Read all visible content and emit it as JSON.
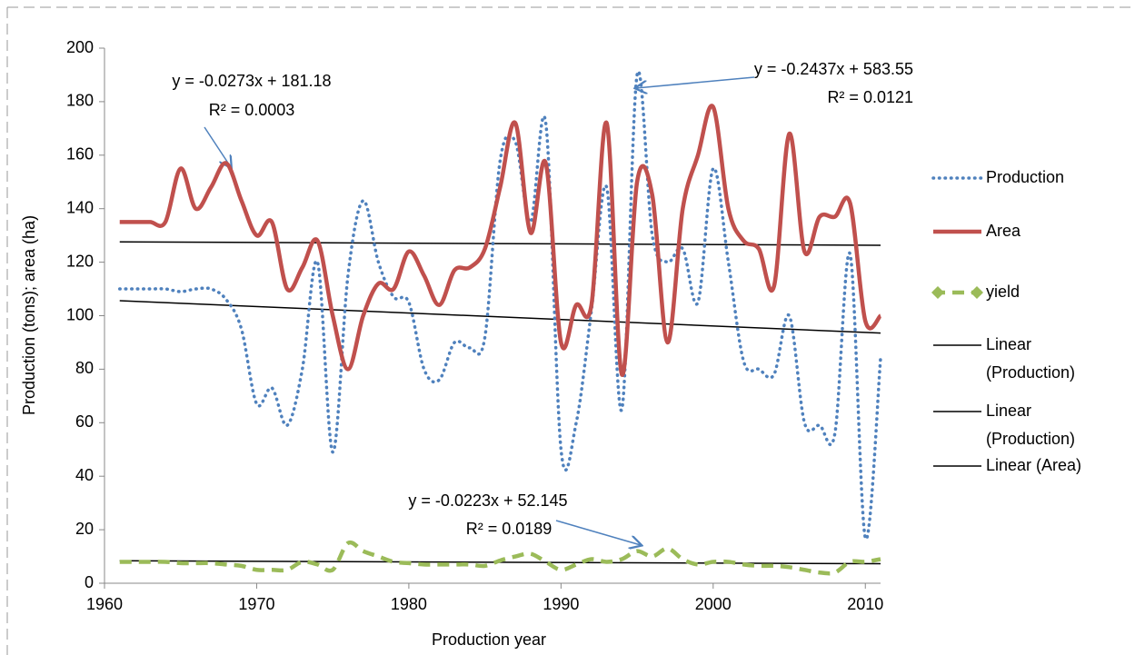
{
  "chart_data": {
    "type": "line",
    "x_label": "Production year",
    "y_label": "Production (tons); area (ha)",
    "xlim": [
      1960,
      2011
    ],
    "xticks": [
      1960,
      1970,
      1980,
      1990,
      2000,
      2010
    ],
    "ylim": [
      0,
      200
    ],
    "yticks": [
      0,
      20,
      40,
      60,
      80,
      100,
      120,
      140,
      160,
      180,
      200
    ],
    "x": [
      1961,
      1962,
      1963,
      1964,
      1965,
      1966,
      1967,
      1968,
      1969,
      1970,
      1971,
      1972,
      1973,
      1974,
      1975,
      1976,
      1977,
      1978,
      1979,
      1980,
      1981,
      1982,
      1983,
      1984,
      1985,
      1986,
      1987,
      1988,
      1989,
      1990,
      1991,
      1992,
      1993,
      1994,
      1995,
      1996,
      1997,
      1998,
      1999,
      2000,
      2001,
      2002,
      2003,
      2004,
      2005,
      2006,
      2007,
      2008,
      2009,
      2010,
      2011
    ],
    "series": [
      {
        "name": "Production",
        "color": "#4f81bd",
        "style": "dotted",
        "values": [
          110,
          110,
          110,
          110,
          109,
          110,
          110,
          106,
          95,
          67,
          73,
          59,
          80,
          120,
          49,
          115,
          143,
          120,
          107,
          105,
          80,
          76,
          90,
          88,
          92,
          158,
          165,
          135,
          172,
          50,
          60,
          102,
          148,
          65,
          190,
          130,
          120,
          125,
          105,
          155,
          120,
          83,
          80,
          78,
          100,
          60,
          59,
          56,
          123,
          17,
          84
        ]
      },
      {
        "name": "Area",
        "color": "#c0504d",
        "style": "solid",
        "values": [
          135,
          135,
          135,
          135,
          155,
          140,
          148,
          157,
          143,
          130,
          135,
          110,
          118,
          128,
          100,
          80,
          100,
          112,
          110,
          124,
          115,
          104,
          117,
          118,
          125,
          148,
          172,
          131,
          157,
          90,
          104,
          104,
          172,
          78,
          150,
          145,
          90,
          140,
          160,
          178,
          140,
          128,
          125,
          111,
          168,
          124,
          137,
          137,
          142,
          98,
          100
        ]
      },
      {
        "name": "yield",
        "color": "#9bbb59",
        "style": "dashed",
        "values": [
          8,
          8,
          8,
          8,
          7.5,
          7.5,
          7.5,
          7,
          6.5,
          5,
          5,
          5,
          8,
          7,
          5,
          15,
          12,
          10,
          8,
          7.5,
          7,
          7,
          7,
          7,
          6.5,
          8.5,
          10,
          11,
          8,
          5,
          7,
          9,
          8,
          9,
          12,
          10,
          13,
          9,
          7,
          8,
          8,
          7,
          6.5,
          6.5,
          6,
          5,
          4,
          4,
          8,
          8,
          9
        ]
      }
    ],
    "trendlines": [
      {
        "name": "Linear (Production)",
        "values": [
          105.6,
          93.5
        ]
      },
      {
        "name": "Linear (Production)",
        "values": [
          8.4,
          7.3
        ]
      },
      {
        "name": "Linear (Area)",
        "values": [
          127.6,
          126.3
        ]
      }
    ],
    "annotations": [
      {
        "equation": "y = -0.0273x + 181.18",
        "r2": "R² = 0.0003"
      },
      {
        "equation": "y = -0.2437x + 583.55",
        "r2": "R² = 0.0121"
      },
      {
        "equation": "y = -0.0223x + 52.145",
        "r2": "R² = 0.0189"
      }
    ]
  }
}
